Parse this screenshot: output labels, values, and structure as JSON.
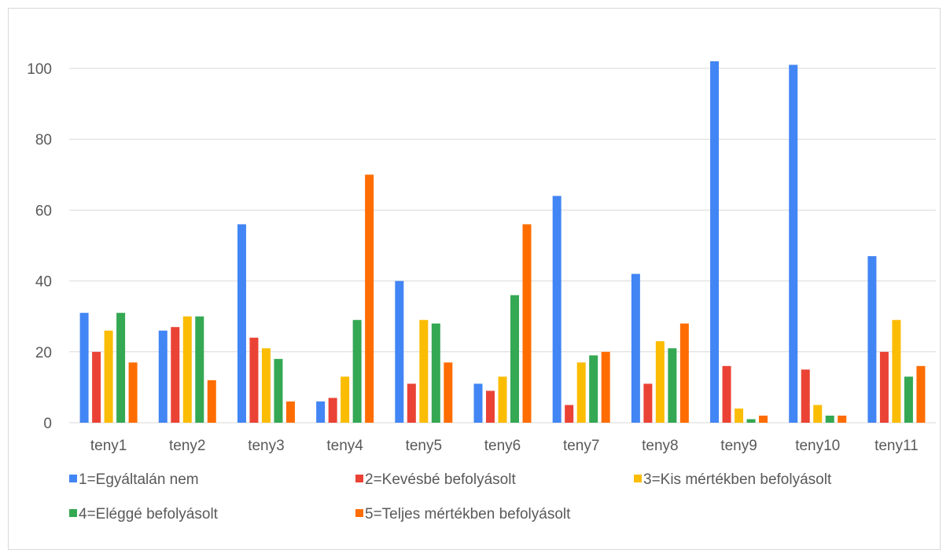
{
  "chart_data": {
    "type": "bar",
    "categories": [
      "teny1",
      "teny2",
      "teny3",
      "teny4",
      "teny5",
      "teny6",
      "teny7",
      "teny8",
      "teny9",
      "teny10",
      "teny11"
    ],
    "series": [
      {
        "name": "1=Egyáltalán nem",
        "color": "#4285f4",
        "values": [
          31,
          26,
          56,
          6,
          40,
          11,
          64,
          42,
          102,
          101,
          47
        ]
      },
      {
        "name": "2=Kevésbé befolyásolt",
        "color": "#ea4335",
        "values": [
          20,
          27,
          24,
          7,
          11,
          9,
          5,
          11,
          16,
          15,
          20
        ]
      },
      {
        "name": "3=Kis mértékben befolyásolt",
        "color": "#fbbc04",
        "values": [
          26,
          30,
          21,
          13,
          29,
          13,
          17,
          23,
          4,
          5,
          29
        ]
      },
      {
        "name": "4=Eléggé befolyásolt",
        "color": "#34a853",
        "values": [
          31,
          30,
          18,
          29,
          28,
          36,
          19,
          21,
          1,
          2,
          13
        ]
      },
      {
        "name": "5=Teljes mértékben befolyásolt",
        "color": "#ff6d01",
        "values": [
          17,
          12,
          6,
          70,
          17,
          56,
          20,
          28,
          2,
          2,
          16
        ]
      }
    ],
    "ylim": [
      0,
      100
    ],
    "yticks": [
      0,
      20,
      40,
      60,
      80,
      100
    ],
    "grid": true,
    "legend_position": "bottom"
  }
}
